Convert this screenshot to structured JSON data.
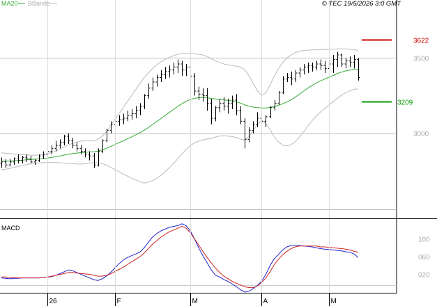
{
  "chart_data": [
    {
      "type": "ohlc",
      "legend": {
        "ma": "MA20",
        "bbands": "BBands"
      },
      "timestamp": "© TEC 19/5/2026 3:0 GMT",
      "ylim": [
        2500,
        3700
      ],
      "yticks": [
        {
          "value": 3500,
          "label": "3500"
        },
        {
          "value": 3000,
          "label": "3000"
        }
      ],
      "gridlines": [
        3500,
        3000
      ],
      "levels": [
        {
          "value": 3622,
          "label": "3622",
          "color": "#cc0000"
        },
        {
          "value": 3209,
          "label": "3209",
          "color": "#009900"
        }
      ],
      "colors": {
        "ma": "#33aa33",
        "bbands": "#bbbbbb",
        "price": "#000000"
      },
      "x_ticks": [
        {
          "index": 11,
          "label": "26"
        },
        {
          "index": 27,
          "label": "F"
        },
        {
          "index": 45,
          "label": "M"
        },
        {
          "index": 62,
          "label": "A"
        },
        {
          "index": 78,
          "label": "M"
        }
      ],
      "n": 86,
      "ohlc": [
        [
          2800,
          2840,
          2770,
          2810
        ],
        [
          2810,
          2830,
          2770,
          2790
        ],
        [
          2790,
          2830,
          2780,
          2810
        ],
        [
          2810,
          2840,
          2790,
          2830
        ],
        [
          2830,
          2860,
          2800,
          2820
        ],
        [
          2820,
          2850,
          2800,
          2840
        ],
        [
          2840,
          2860,
          2810,
          2830
        ],
        [
          2830,
          2850,
          2800,
          2810
        ],
        [
          2810,
          2830,
          2790,
          2820
        ],
        [
          2820,
          2860,
          2810,
          2850
        ],
        [
          2850,
          2880,
          2830,
          2860
        ],
        [
          2860,
          2900,
          2840,
          2880
        ],
        [
          2880,
          2920,
          2860,
          2900
        ],
        [
          2900,
          2950,
          2880,
          2920
        ],
        [
          2920,
          2960,
          2900,
          2940
        ],
        [
          2940,
          2990,
          2920,
          2980
        ],
        [
          2980,
          3000,
          2930,
          2950
        ],
        [
          2950,
          2970,
          2900,
          2920
        ],
        [
          2920,
          2940,
          2880,
          2900
        ],
        [
          2900,
          2920,
          2860,
          2880
        ],
        [
          2880,
          2900,
          2840,
          2860
        ],
        [
          2860,
          2880,
          2820,
          2850
        ],
        [
          2850,
          2870,
          2770,
          2790
        ],
        [
          2790,
          2900,
          2780,
          2880
        ],
        [
          2880,
          2960,
          2870,
          2950
        ],
        [
          2950,
          3030,
          2940,
          3020
        ],
        [
          3020,
          3080,
          3000,
          3060
        ],
        [
          3060,
          3100,
          3030,
          3080
        ],
        [
          3080,
          3120,
          3050,
          3090
        ],
        [
          3090,
          3130,
          3060,
          3100
        ],
        [
          3100,
          3150,
          3080,
          3120
        ],
        [
          3120,
          3160,
          3090,
          3130
        ],
        [
          3130,
          3180,
          3100,
          3150
        ],
        [
          3150,
          3200,
          3120,
          3180
        ],
        [
          3180,
          3260,
          3160,
          3250
        ],
        [
          3250,
          3330,
          3230,
          3300
        ],
        [
          3300,
          3370,
          3280,
          3340
        ],
        [
          3340,
          3390,
          3310,
          3370
        ],
        [
          3370,
          3420,
          3340,
          3390
        ],
        [
          3390,
          3440,
          3360,
          3410
        ],
        [
          3410,
          3450,
          3370,
          3420
        ],
        [
          3420,
          3470,
          3390,
          3440
        ],
        [
          3440,
          3490,
          3400,
          3460
        ],
        [
          3460,
          3480,
          3380,
          3420
        ],
        [
          3420,
          3460,
          3380,
          3440
        ],
        [
          3440,
          3460,
          3340,
          3380
        ],
        [
          3380,
          3400,
          3250,
          3280
        ],
        [
          3280,
          3310,
          3220,
          3260
        ],
        [
          3260,
          3300,
          3210,
          3250
        ],
        [
          3250,
          3300,
          3150,
          3200
        ],
        [
          3200,
          3230,
          3060,
          3100
        ],
        [
          3100,
          3180,
          3080,
          3170
        ],
        [
          3170,
          3230,
          3140,
          3200
        ],
        [
          3200,
          3240,
          3150,
          3180
        ],
        [
          3180,
          3230,
          3130,
          3200
        ],
        [
          3200,
          3250,
          3160,
          3220
        ],
        [
          3220,
          3260,
          3120,
          3150
        ],
        [
          3150,
          3180,
          3060,
          3080
        ],
        [
          3080,
          3100,
          2900,
          2960
        ],
        [
          2960,
          3040,
          2940,
          3020
        ],
        [
          3020,
          3080,
          3000,
          3060
        ],
        [
          3060,
          3140,
          3040,
          3100
        ],
        [
          3100,
          3140,
          3060,
          3080
        ],
        [
          3080,
          3120,
          3040,
          3110
        ],
        [
          3110,
          3180,
          3100,
          3170
        ],
        [
          3170,
          3220,
          3150,
          3200
        ],
        [
          3200,
          3280,
          3190,
          3270
        ],
        [
          3270,
          3380,
          3260,
          3360
        ],
        [
          3360,
          3400,
          3340,
          3370
        ],
        [
          3370,
          3410,
          3320,
          3360
        ],
        [
          3360,
          3420,
          3340,
          3400
        ],
        [
          3400,
          3440,
          3370,
          3420
        ],
        [
          3420,
          3460,
          3390,
          3440
        ],
        [
          3440,
          3470,
          3400,
          3450
        ],
        [
          3450,
          3470,
          3410,
          3440
        ],
        [
          3440,
          3480,
          3420,
          3460
        ],
        [
          3460,
          3490,
          3420,
          3450
        ],
        [
          3450,
          3480,
          3400,
          3430
        ],
        [
          3430,
          3480,
          3360,
          3460
        ],
        [
          3460,
          3520,
          3400,
          3490
        ],
        [
          3490,
          3540,
          3440,
          3520
        ],
        [
          3520,
          3530,
          3440,
          3460
        ],
        [
          3460,
          3500,
          3430,
          3480
        ],
        [
          3480,
          3510,
          3440,
          3470
        ],
        [
          3470,
          3520,
          3430,
          3490
        ],
        [
          3490,
          3500,
          3350,
          3370
        ]
      ],
      "ma20": [
        2815,
        2815,
        2816,
        2818,
        2820,
        2822,
        2824,
        2826,
        2828,
        2830,
        2833,
        2836,
        2840,
        2845,
        2850,
        2856,
        2862,
        2866,
        2869,
        2872,
        2874,
        2876,
        2877,
        2882,
        2890,
        2900,
        2912,
        2925,
        2938,
        2950,
        2963,
        2976,
        2990,
        3004,
        3020,
        3038,
        3058,
        3078,
        3098,
        3118,
        3138,
        3158,
        3178,
        3196,
        3212,
        3224,
        3232,
        3236,
        3238,
        3236,
        3230,
        3228,
        3226,
        3222,
        3218,
        3214,
        3208,
        3200,
        3188,
        3180,
        3174,
        3170,
        3168,
        3168,
        3172,
        3178,
        3186,
        3196,
        3208,
        3222,
        3240,
        3260,
        3280,
        3300,
        3318,
        3334,
        3348,
        3360,
        3372,
        3384,
        3396,
        3406,
        3414,
        3420,
        3424,
        3422
      ],
      "bb_upper": [
        2870,
        2868,
        2865,
        2862,
        2860,
        2858,
        2856,
        2855,
        2855,
        2856,
        2860,
        2866,
        2874,
        2884,
        2896,
        2910,
        2924,
        2934,
        2942,
        2948,
        2950,
        2950,
        2948,
        2960,
        2980,
        3010,
        3050,
        3090,
        3130,
        3170,
        3210,
        3250,
        3290,
        3330,
        3370,
        3400,
        3430,
        3455,
        3475,
        3490,
        3505,
        3515,
        3525,
        3530,
        3530,
        3530,
        3528,
        3524,
        3520,
        3510,
        3495,
        3480,
        3470,
        3460,
        3455,
        3450,
        3445,
        3440,
        3420,
        3380,
        3330,
        3280,
        3250,
        3270,
        3320,
        3380,
        3430,
        3470,
        3500,
        3520,
        3535,
        3545,
        3550,
        3552,
        3553,
        3554,
        3555,
        3556,
        3557,
        3558,
        3560,
        3560,
        3560,
        3558,
        3555,
        3550
      ],
      "bb_lower": [
        2760,
        2762,
        2767,
        2774,
        2780,
        2786,
        2792,
        2797,
        2801,
        2804,
        2806,
        2806,
        2806,
        2806,
        2804,
        2802,
        2800,
        2798,
        2796,
        2796,
        2798,
        2802,
        2806,
        2804,
        2800,
        2790,
        2774,
        2760,
        2746,
        2730,
        2716,
        2702,
        2690,
        2678,
        2670,
        2676,
        2686,
        2701,
        2721,
        2746,
        2771,
        2801,
        2831,
        2862,
        2894,
        2918,
        2936,
        2948,
        2956,
        2962,
        2965,
        2976,
        2982,
        2984,
        2981,
        2978,
        2971,
        2960,
        2956,
        2980,
        3018,
        3060,
        3086,
        3066,
        3024,
        2976,
        2942,
        2922,
        2916,
        2924,
        2945,
        2975,
        3010,
        3048,
        3083,
        3114,
        3141,
        3164,
        3187,
        3210,
        3232,
        3252,
        3268,
        3282,
        3293,
        3294
      ]
    },
    {
      "type": "line",
      "title": "MACD",
      "ylim": [
        -20,
        140
      ],
      "yticks": [
        {
          "value": 100,
          "label": "100"
        },
        {
          "value": 60,
          "label": "060"
        },
        {
          "value": 20,
          "label": "020"
        }
      ],
      "series": [
        {
          "name": "macd",
          "color": "#2222cc",
          "values": [
            12,
            11,
            10,
            11,
            11,
            12,
            12,
            12,
            12,
            12,
            13,
            14,
            15,
            18,
            22,
            26,
            30,
            28,
            24,
            20,
            16,
            12,
            8,
            6,
            10,
            16,
            24,
            34,
            44,
            52,
            58,
            62,
            66,
            70,
            80,
            92,
            104,
            112,
            118,
            122,
            126,
            128,
            130,
            134,
            130,
            118,
            100,
            80,
            62,
            46,
            30,
            18,
            14,
            8,
            4,
            -2,
            -8,
            -15,
            -20,
            -18,
            -12,
            -5,
            5,
            20,
            40,
            55,
            65,
            75,
            82,
            85,
            86,
            85,
            84,
            83,
            82,
            80,
            78,
            77,
            76,
            75,
            74,
            73,
            71,
            70,
            66,
            58
          ]
        },
        {
          "name": "signal",
          "color": "#cc2222",
          "values": [
            14,
            14,
            13,
            13,
            12,
            12,
            12,
            12,
            12,
            12,
            13,
            14,
            16,
            18,
            20,
            22,
            24,
            24,
            23,
            22,
            21,
            20,
            18,
            16,
            16,
            18,
            21,
            26,
            31,
            36,
            42,
            48,
            54,
            60,
            68,
            78,
            88,
            96,
            104,
            110,
            116,
            120,
            124,
            128,
            124,
            114,
            100,
            86,
            72,
            58,
            46,
            34,
            24,
            16,
            10,
            4,
            0,
            -4,
            -8,
            -10,
            -10,
            -6,
            2,
            12,
            26,
            42,
            54,
            64,
            72,
            78,
            82,
            84,
            84,
            84,
            84,
            84,
            82,
            82,
            81,
            80,
            79,
            78,
            77,
            75,
            72,
            70
          ]
        }
      ]
    }
  ]
}
